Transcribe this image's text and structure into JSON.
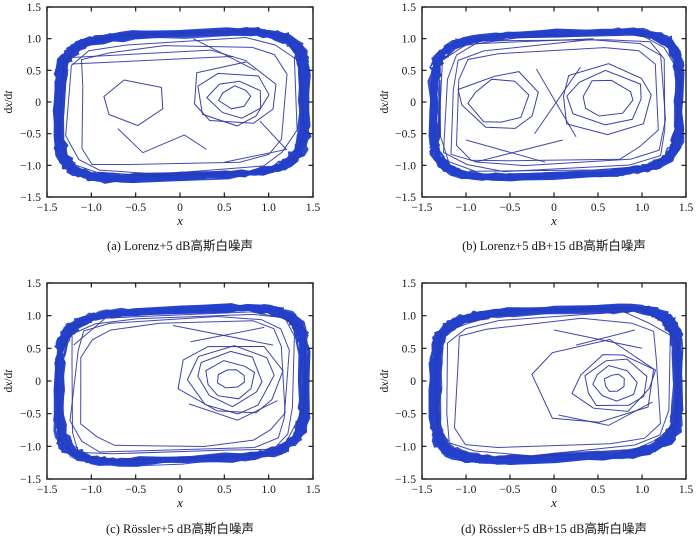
{
  "figure": {
    "background": "#ffffff",
    "band_color": "#2341cb",
    "line_color": "#2e36a8",
    "axis_color": "#1a1a1a",
    "text_color": "#141414"
  },
  "axes": {
    "xlabel": "x",
    "ylabel_parts": [
      {
        "t": "d",
        "i": false
      },
      {
        "t": "x",
        "i": true
      },
      {
        "t": "/d",
        "i": false
      },
      {
        "t": "t",
        "i": true
      }
    ],
    "xlim": [
      -1.5,
      1.5
    ],
    "ylim": [
      -1.5,
      1.5
    ],
    "tick_values": [
      -1.5,
      -1.0,
      -0.5,
      0,
      0.5,
      1.0,
      1.5
    ],
    "tick_labels": [
      "−1.5",
      "−1.0",
      "−0.5",
      "0",
      "0.5",
      "1.0",
      "1.5"
    ],
    "grid": false,
    "legend": false
  },
  "chart_data": [
    {
      "id": "a",
      "type": "line",
      "caption": "(a) Lorenz+5 dB高斯白噪声",
      "system": "Lorenz",
      "noise": "5 dB高斯白噪声",
      "xlabel": "x",
      "ylabel": "dx/dt",
      "xlim": [
        -1.5,
        1.5
      ],
      "ylim": [
        -1.5,
        1.5
      ],
      "band": {
        "cx": 0.02,
        "cy": -0.05,
        "rx": 1.42,
        "ry": 1.16,
        "shear": 0.055,
        "squareness": 0.42,
        "passes": 24,
        "jitter": 0.038,
        "seed": 101
      },
      "shells": {
        "scales": [
          0.95,
          0.89,
          0.82
        ],
        "sides": 13,
        "jitter": 0.05,
        "seed": 102
      },
      "clusters": [
        {
          "cx": -0.5,
          "cy": 0.03,
          "rings": [
            0.38
          ],
          "sides": 6,
          "seed": 103
        },
        {
          "cx": 0.62,
          "cy": 0.07,
          "rings": [
            0.17,
            0.3,
            0.42,
            0.52
          ],
          "sides": 7,
          "seed": 104
        }
      ],
      "polylines": [
        [
          [
            -1.28,
            0.7
          ],
          [
            0.35,
            0.82
          ],
          [
            0.75,
            0.65
          ]
        ],
        [
          [
            -1.22,
            0.6
          ],
          [
            0.6,
            0.72
          ]
        ],
        [
          [
            0.15,
            1.0
          ],
          [
            0.85,
            0.5
          ]
        ],
        [
          [
            -0.7,
            -0.42
          ],
          [
            -0.42,
            -0.8
          ],
          [
            0.05,
            -0.52
          ],
          [
            0.3,
            -0.75
          ]
        ],
        [
          [
            0.9,
            -0.3
          ],
          [
            1.2,
            -0.75
          ],
          [
            0.5,
            -0.95
          ]
        ]
      ]
    },
    {
      "id": "b",
      "type": "line",
      "caption": "(b) Lorenz+5 dB+15 dB高斯白噪声",
      "system": "Lorenz",
      "noise": "5 dB+15 dB高斯白噪声",
      "xlabel": "x",
      "ylabel": "dx/dt",
      "xlim": [
        -1.5,
        1.5
      ],
      "ylim": [
        -1.5,
        1.5
      ],
      "band": {
        "cx": 0.03,
        "cy": -0.04,
        "rx": 1.43,
        "ry": 1.15,
        "shear": 0.055,
        "squareness": 0.42,
        "passes": 24,
        "jitter": 0.038,
        "seed": 201
      },
      "shells": {
        "scales": [
          0.95,
          0.9,
          0.84,
          0.78
        ],
        "sides": 12,
        "jitter": 0.05,
        "seed": 202
      },
      "clusters": [
        {
          "cx": -0.62,
          "cy": 0.0,
          "rings": [
            0.33,
            0.47
          ],
          "sides": 8,
          "seed": 203
        },
        {
          "cx": 0.6,
          "cy": 0.05,
          "rings": [
            0.3,
            0.42,
            0.54
          ],
          "sides": 8,
          "seed": 204
        }
      ],
      "polylines": [
        [
          [
            -0.2,
            0.52
          ],
          [
            0.25,
            -0.55
          ]
        ],
        [
          [
            -0.22,
            -0.5
          ],
          [
            0.3,
            0.55
          ]
        ],
        [
          [
            -1.0,
            -0.6
          ],
          [
            -0.1,
            -0.95
          ]
        ],
        [
          [
            -0.9,
            -0.95
          ],
          [
            0.1,
            -0.6
          ]
        ],
        [
          [
            -0.9,
            0.92
          ],
          [
            0.45,
            1.0
          ]
        ]
      ]
    },
    {
      "id": "c",
      "type": "line",
      "caption": "(c) Rössler+5 dB高斯白噪声",
      "system": "Rössler",
      "noise": "5 dB高斯白噪声",
      "xlabel": "x",
      "ylabel": "dx/dt",
      "xlim": [
        -1.5,
        1.5
      ],
      "ylim": [
        -1.5,
        1.5
      ],
      "band": {
        "cx": 0.02,
        "cy": -0.06,
        "rx": 1.42,
        "ry": 1.18,
        "shear": 0.055,
        "squareness": 0.42,
        "passes": 24,
        "jitter": 0.038,
        "seed": 301
      },
      "shells": {
        "scales": [
          0.96,
          0.91,
          0.85,
          0.79
        ],
        "sides": 14,
        "jitter": 0.05,
        "seed": 302
      },
      "clusters": [
        {
          "cx": 0.58,
          "cy": 0.03,
          "rings": [
            0.16,
            0.28,
            0.38,
            0.48,
            0.58
          ],
          "sides": 8,
          "seed": 303
        }
      ],
      "polylines": [
        [
          [
            -0.08,
            0.85
          ],
          [
            1.05,
            0.55
          ]
        ],
        [
          [
            0.12,
            0.6
          ],
          [
            0.95,
            0.82
          ]
        ],
        [
          [
            0.1,
            -0.35
          ],
          [
            0.65,
            -0.6
          ],
          [
            1.1,
            -0.3
          ]
        ],
        [
          [
            -1.2,
            0.55
          ],
          [
            -0.85,
            0.95
          ]
        ]
      ]
    },
    {
      "id": "d",
      "type": "line",
      "caption": "(d) Rössler+5 dB+15 dB高斯白噪声",
      "system": "Rössler",
      "noise": "5 dB+15 dB高斯白噪声",
      "xlabel": "x",
      "ylabel": "dx/dt",
      "xlim": [
        -1.5,
        1.5
      ],
      "ylim": [
        -1.5,
        1.5
      ],
      "band": {
        "cx": 0.03,
        "cy": -0.05,
        "rx": 1.42,
        "ry": 1.16,
        "shear": 0.055,
        "squareness": 0.42,
        "passes": 24,
        "jitter": 0.038,
        "seed": 401
      },
      "shells": {
        "scales": [
          0.95,
          0.9,
          0.83
        ],
        "sides": 13,
        "jitter": 0.05,
        "seed": 402
      },
      "clusters": [
        {
          "cx": 0.69,
          "cy": -0.03,
          "rings": [
            0.13,
            0.25,
            0.36,
            0.46
          ],
          "sides": 8,
          "seed": 403
        },
        {
          "cx": 0.42,
          "cy": 0.0,
          "rings": [
            0.68
          ],
          "sides": 7,
          "seed": 404
        }
      ],
      "polylines": [
        [
          [
            0.0,
            0.78
          ],
          [
            1.0,
            0.5
          ]
        ],
        [
          [
            0.25,
            0.55
          ],
          [
            0.92,
            0.78
          ]
        ],
        [
          [
            0.05,
            -0.52
          ],
          [
            0.62,
            -0.68
          ],
          [
            1.12,
            -0.32
          ]
        ]
      ]
    }
  ]
}
